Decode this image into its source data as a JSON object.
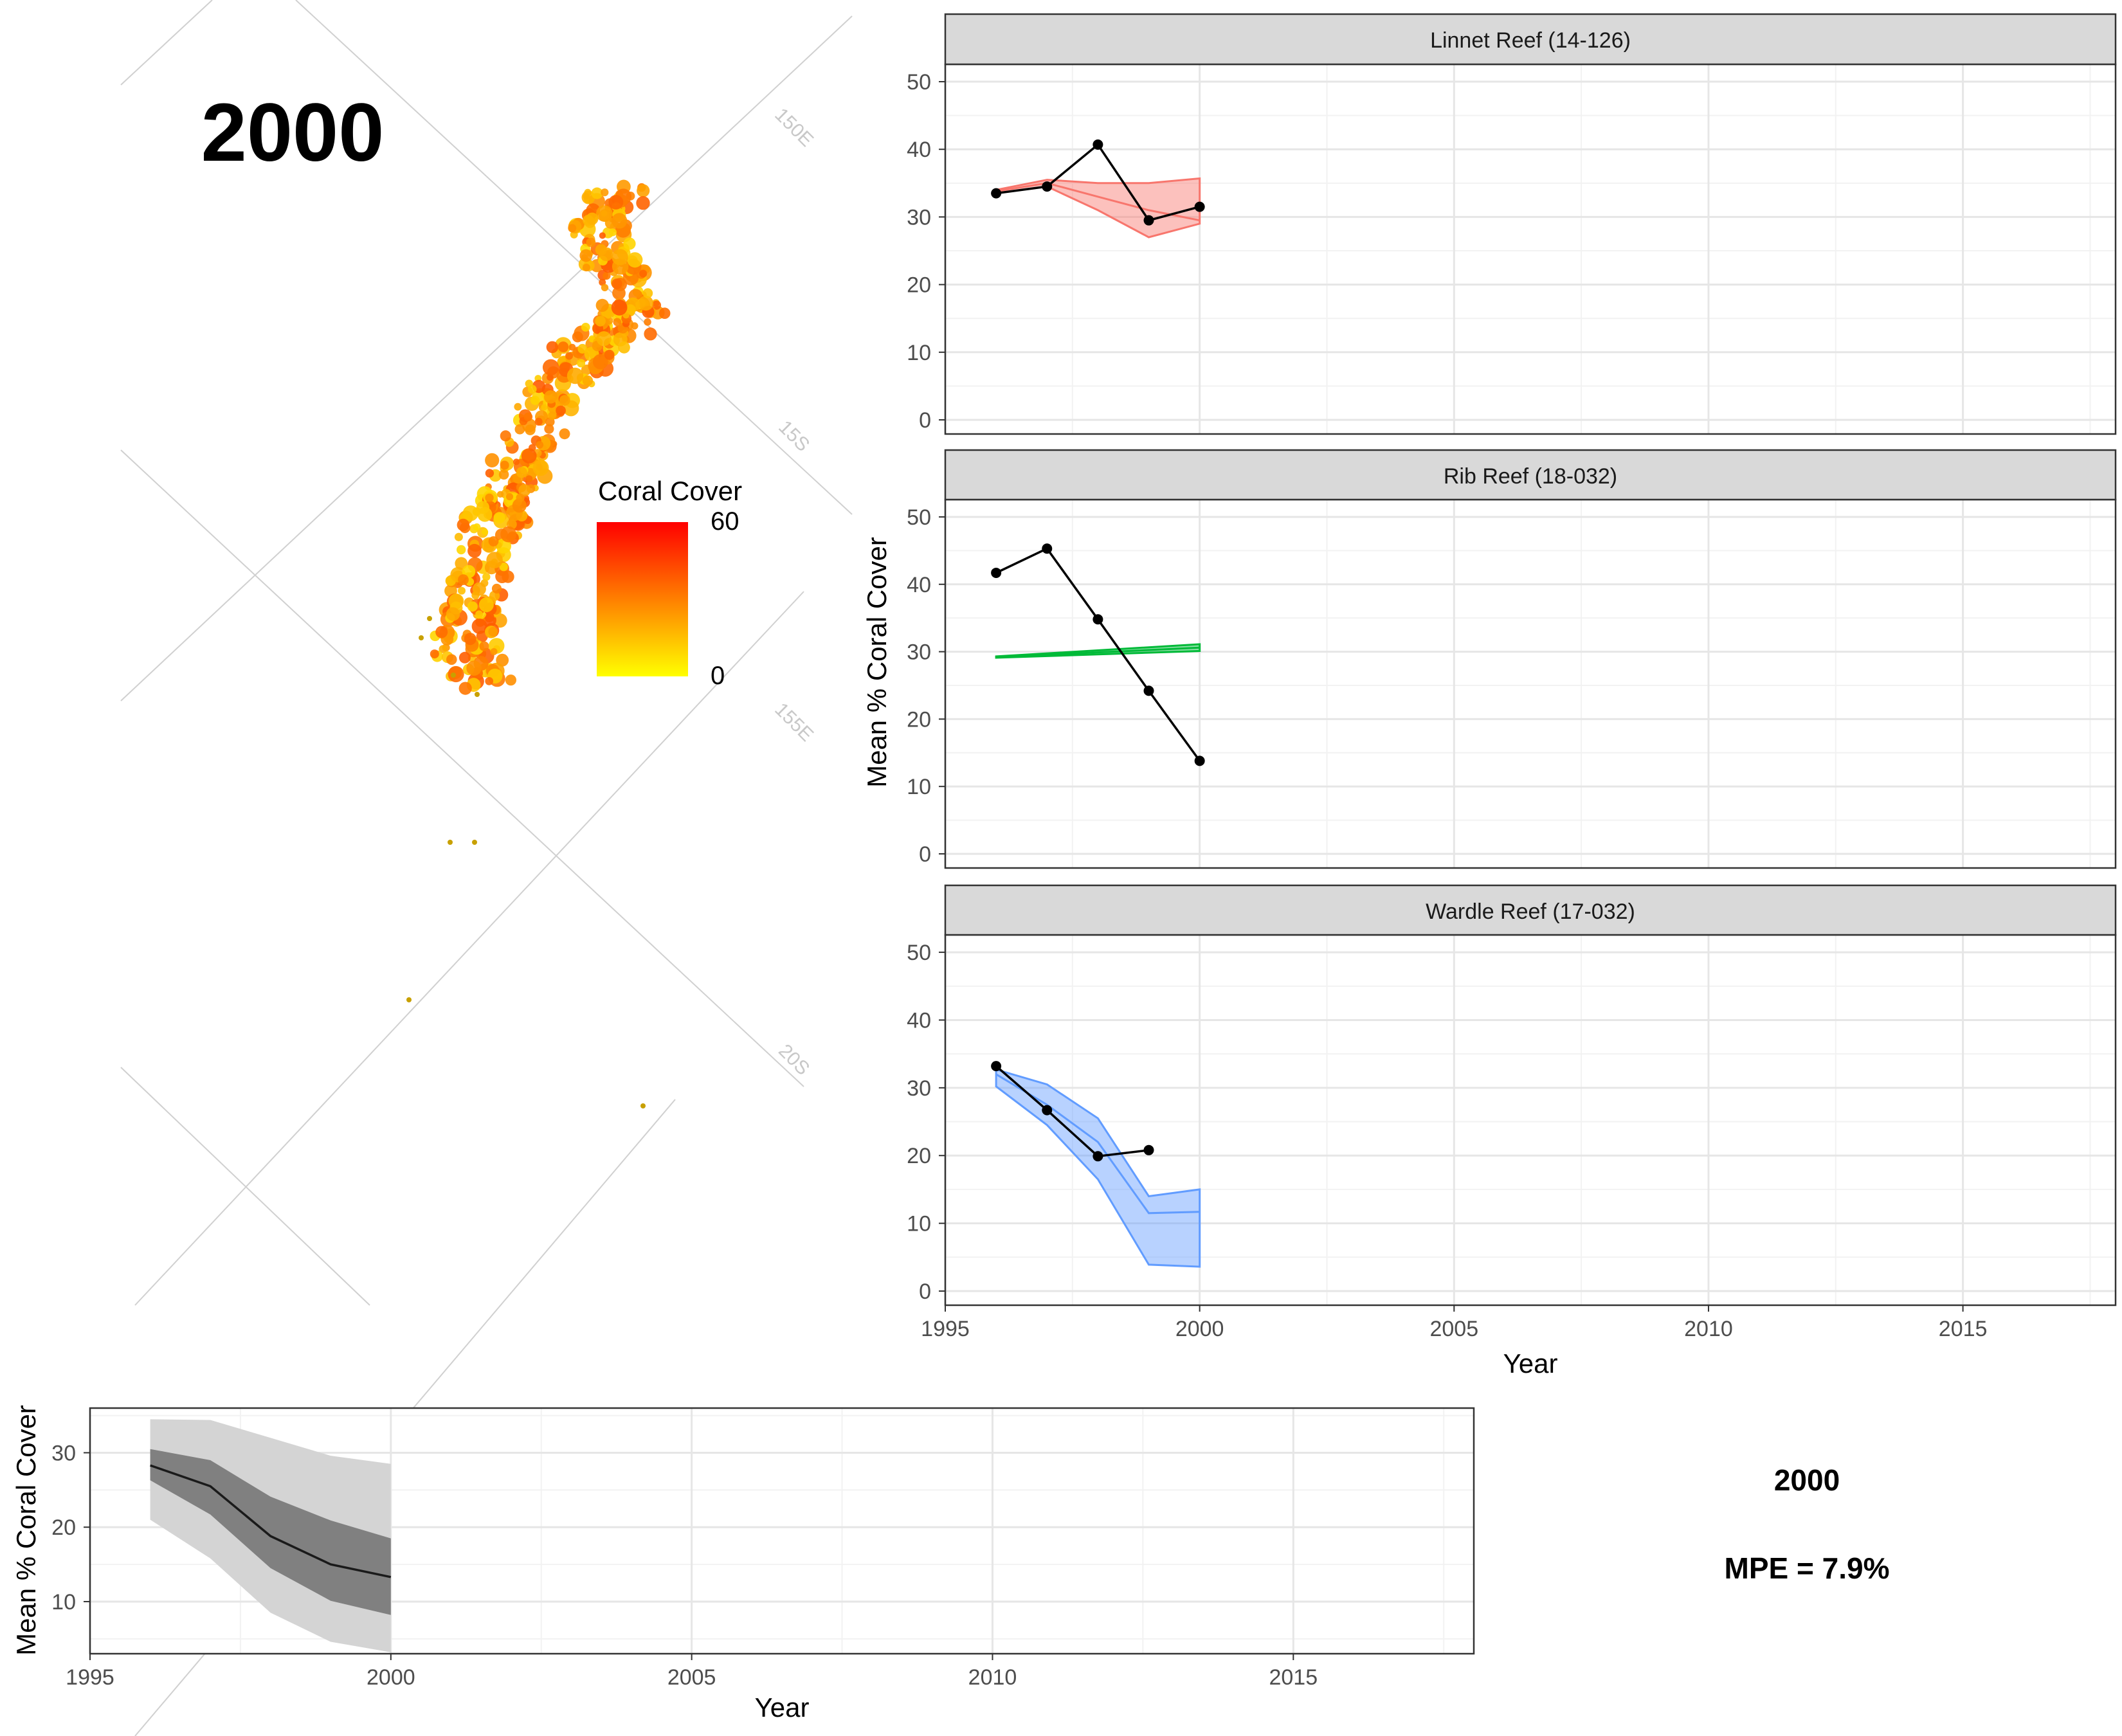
{
  "map": {
    "year_label": "2000",
    "grid_labels": [
      "150E",
      "15S",
      "155E",
      "20S"
    ],
    "legend": {
      "title": "Coral Cover",
      "max_label": "60",
      "min_label": "0",
      "color_low": "#ffff00",
      "color_high": "#ff0000"
    }
  },
  "reef_panels": {
    "ylabel": "Mean % Coral Cover",
    "xlabel": "Year",
    "xlim": [
      1995,
      2018
    ],
    "ylim": [
      0,
      52
    ],
    "x_ticks": [
      1995,
      2000,
      2005,
      2010,
      2015
    ],
    "y_ticks": [
      0,
      10,
      20,
      30,
      40,
      50
    ]
  },
  "summary_panel": {
    "ylabel": "Mean % Coral Cover",
    "xlabel": "Year",
    "xlim": [
      1995,
      2018
    ],
    "ylim": [
      3,
      36
    ],
    "x_ticks": [
      1995,
      2000,
      2005,
      2010,
      2015
    ],
    "y_ticks": [
      10,
      20,
      30
    ]
  },
  "annotation": {
    "year": "2000",
    "mpe": "MPE = 7.9%"
  },
  "chart_data": [
    {
      "type": "line",
      "title": "Linnet Reef (14-126)",
      "color": "#f8766d",
      "observed": {
        "x": [
          1996,
          1997,
          1998,
          1999,
          2000
        ],
        "y": [
          33.5,
          34.5,
          40.7,
          29.5,
          31.5
        ]
      },
      "predicted": {
        "x": [
          1996,
          1997,
          1998,
          1999,
          2000
        ],
        "mean": [
          33.8,
          35.0,
          33.0,
          31.0,
          29.5
        ],
        "lower": [
          33.5,
          34.5,
          31.0,
          27.0,
          29.0
        ],
        "upper": [
          34.0,
          35.5,
          35.0,
          35.0,
          35.7
        ]
      }
    },
    {
      "type": "line",
      "title": "Rib Reef (18-032)",
      "color": "#00ba38",
      "observed": {
        "x": [
          1996,
          1997,
          1998,
          1999,
          2000
        ],
        "y": [
          41.7,
          45.3,
          34.8,
          24.2,
          13.8
        ]
      },
      "predicted": {
        "x": [
          1996,
          2000
        ],
        "mean": [
          29.2,
          30.6
        ],
        "lower": [
          29.1,
          30.1
        ],
        "upper": [
          29.3,
          31.1
        ]
      }
    },
    {
      "type": "line",
      "title": "Wardle Reef (17-032)",
      "color": "#619cff",
      "observed": {
        "x": [
          1996,
          1997,
          1998,
          1999
        ],
        "y": [
          33.2,
          26.7,
          19.9,
          20.8
        ]
      },
      "predicted": {
        "x": [
          1996,
          1997,
          1998,
          1999,
          2000
        ],
        "mean": [
          32.0,
          27.5,
          22.0,
          11.5,
          11.7
        ],
        "lower": [
          30.2,
          24.5,
          16.5,
          3.9,
          3.6
        ],
        "upper": [
          32.7,
          30.5,
          25.5,
          14.0,
          15.0
        ]
      }
    },
    {
      "type": "area",
      "title": "",
      "x": [
        1996,
        1997,
        1998,
        1999,
        2000
      ],
      "mean": [
        28.3,
        25.5,
        18.8,
        15.0,
        13.3
      ],
      "inner_lower": [
        26.3,
        21.7,
        14.5,
        10.1,
        8.2
      ],
      "inner_upper": [
        30.5,
        29.0,
        24.1,
        20.9,
        18.5
      ],
      "outer_lower": [
        21.0,
        15.8,
        8.5,
        4.6,
        3.2
      ],
      "outer_upper": [
        34.5,
        34.4,
        32.0,
        29.6,
        28.5
      ]
    }
  ]
}
